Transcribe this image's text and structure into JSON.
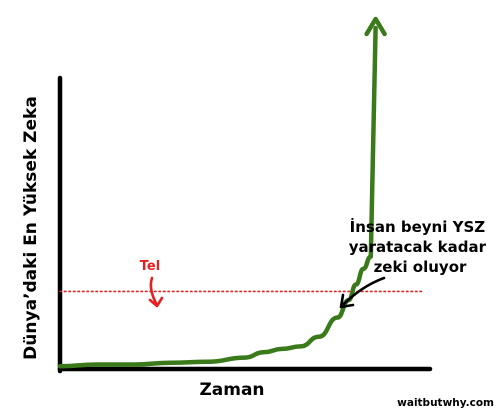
{
  "chart_data": {
    "type": "line",
    "title": "",
    "xlabel": "Zaman",
    "ylabel": "Dünya’daki En Yüksek Zeka",
    "x": [
      0,
      10,
      20,
      30,
      40,
      50,
      55,
      60,
      65,
      70,
      75,
      78,
      80,
      82,
      84,
      85.3
    ],
    "series": [
      {
        "values": [
          0.5,
          1.0,
          1.0,
          1.5,
          1.8,
          3.0,
          4.5,
          5.5,
          6.2,
          9.0,
          14.5,
          19.5,
          24.0,
          28.5,
          32.0,
          100
        ]
      }
    ],
    "xlim": [
      0,
      100
    ],
    "ylim": [
      0,
      100
    ],
    "reference_line": {
      "label": "Tel",
      "value": 22,
      "color": "#e52020",
      "style": "dotted"
    },
    "annotation": {
      "text_lines": [
        "İnsan beyni YSZ",
        "yaratacak kadar",
        "zeki oluyor"
      ]
    },
    "line_color": "#3a7a1a",
    "grid": false,
    "arrow_at_end": true
  },
  "credit": "waitbutwhy.com"
}
